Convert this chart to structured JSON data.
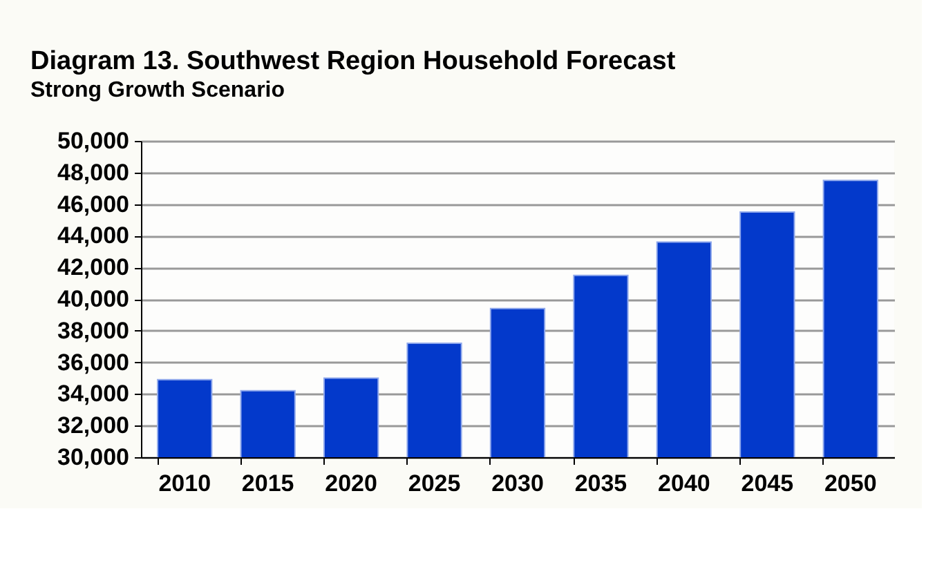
{
  "chart_data": {
    "type": "bar",
    "title": "Diagram 13. Southwest Region Household Forecast",
    "subtitle": "Strong Growth Scenario",
    "categories": [
      "2010",
      "2015",
      "2020",
      "2025",
      "2030",
      "2035",
      "2040",
      "2045",
      "2050"
    ],
    "values": [
      34900,
      34200,
      35000,
      37200,
      39400,
      41500,
      43600,
      45500,
      47500
    ],
    "color": "#0339cb",
    "ylim": [
      30000,
      50000
    ],
    "yticks": [
      {
        "value": 30000,
        "label": "30,000"
      },
      {
        "value": 32000,
        "label": "32,000"
      },
      {
        "value": 34000,
        "label": "34,000"
      },
      {
        "value": 36000,
        "label": "36,000"
      },
      {
        "value": 38000,
        "label": "38,000"
      },
      {
        "value": 40000,
        "label": "40,000"
      },
      {
        "value": 42000,
        "label": "42,000"
      },
      {
        "value": 44000,
        "label": "44,000"
      },
      {
        "value": 46000,
        "label": "46,000"
      },
      {
        "value": 48000,
        "label": "48,000"
      },
      {
        "value": 50000,
        "label": "50,000"
      }
    ],
    "grid": "y"
  }
}
